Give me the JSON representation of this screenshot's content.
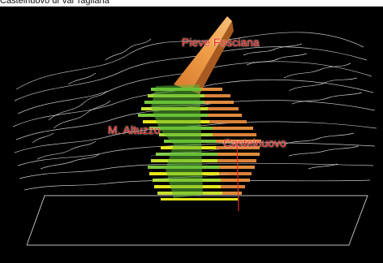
{
  "caption": "Castelnuovo di Val Tagliana",
  "labels": {
    "pieve": "Pieve Fosciana",
    "altuzzo": "M. Altuzzo",
    "castelnuovo": "Castelnuovo"
  },
  "colors": {
    "background": "#000000",
    "contour": "#e8e8e8",
    "label": "#e8281e",
    "fan_green": "#6ec83c",
    "fan_yellow": "#e6e61e",
    "fan_orange": "#e08c3c"
  }
}
